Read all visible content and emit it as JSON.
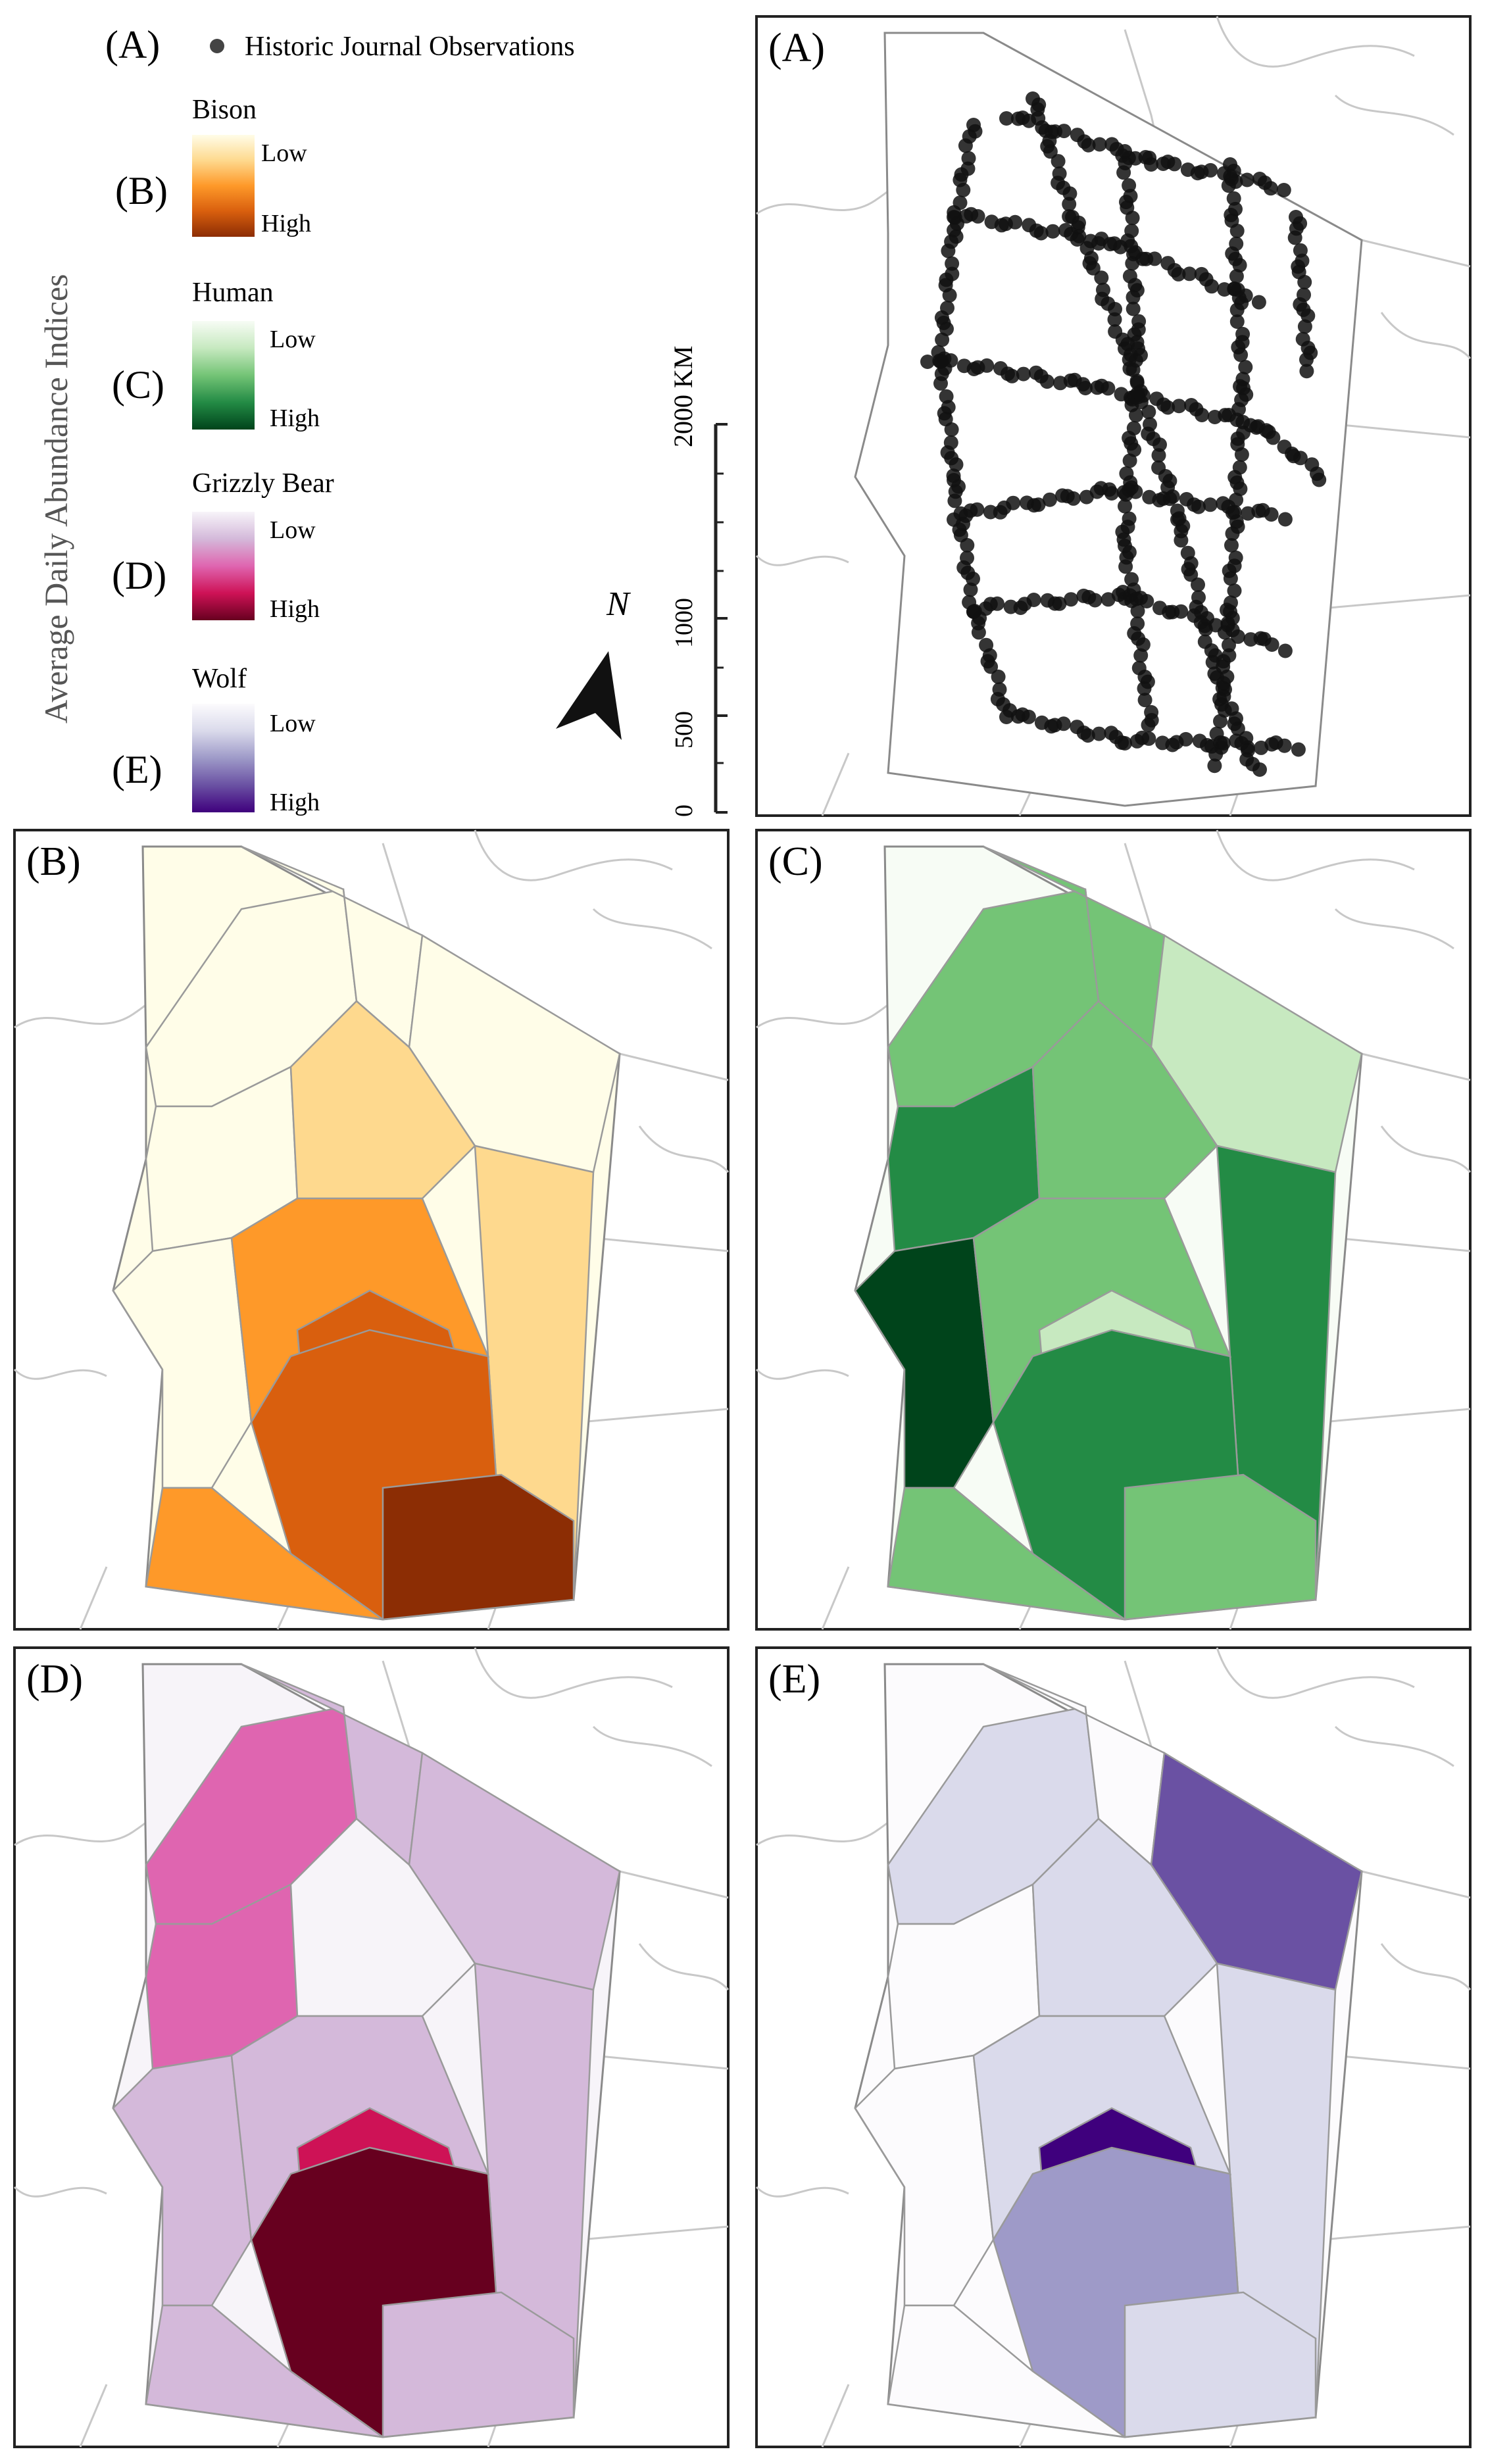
{
  "legend": {
    "a": {
      "tag": "(A)",
      "label": "Historic Journal Observations"
    },
    "vertical_title": "Average Daily Abundance Indices",
    "ramps": [
      {
        "tag": "(B)",
        "name": "Bison",
        "low": "Low",
        "high": "High",
        "colors": [
          "#fffde8",
          "#fed98e",
          "#fe9929",
          "#d95f0e",
          "#8c2d04"
        ]
      },
      {
        "tag": "(C)",
        "name": "Human",
        "low": "Low",
        "high": "High",
        "colors": [
          "#f7fcf5",
          "#c7e9c0",
          "#74c476",
          "#238b45",
          "#00441b"
        ]
      },
      {
        "tag": "(D)",
        "name": "Grizzly Bear",
        "low": "Low",
        "high": "High",
        "colors": [
          "#f7f4f9",
          "#d4b9da",
          "#df65b0",
          "#ce1256",
          "#67001f"
        ]
      },
      {
        "tag": "(E)",
        "name": "Wolf",
        "low": "Low",
        "high": "High",
        "colors": [
          "#fcfbfd",
          "#dadaeb",
          "#9e9ac8",
          "#6a51a3",
          "#3f007d"
        ]
      }
    ]
  },
  "scale_bar": {
    "unit_label": "2000 KM",
    "ticks": [
      "0",
      "500",
      "1000",
      "2000"
    ]
  },
  "north_arrow": {
    "label": "N"
  },
  "panels": [
    {
      "tag": "(A)"
    },
    {
      "tag": "(B)"
    },
    {
      "tag": "(C)"
    },
    {
      "tag": "(D)"
    },
    {
      "tag": "(E)"
    }
  ],
  "colors": {
    "boundary": "#9a9a9a",
    "frame": "#222222",
    "observation_dot": "#111111",
    "study_outline": "#8a8a8a"
  }
}
